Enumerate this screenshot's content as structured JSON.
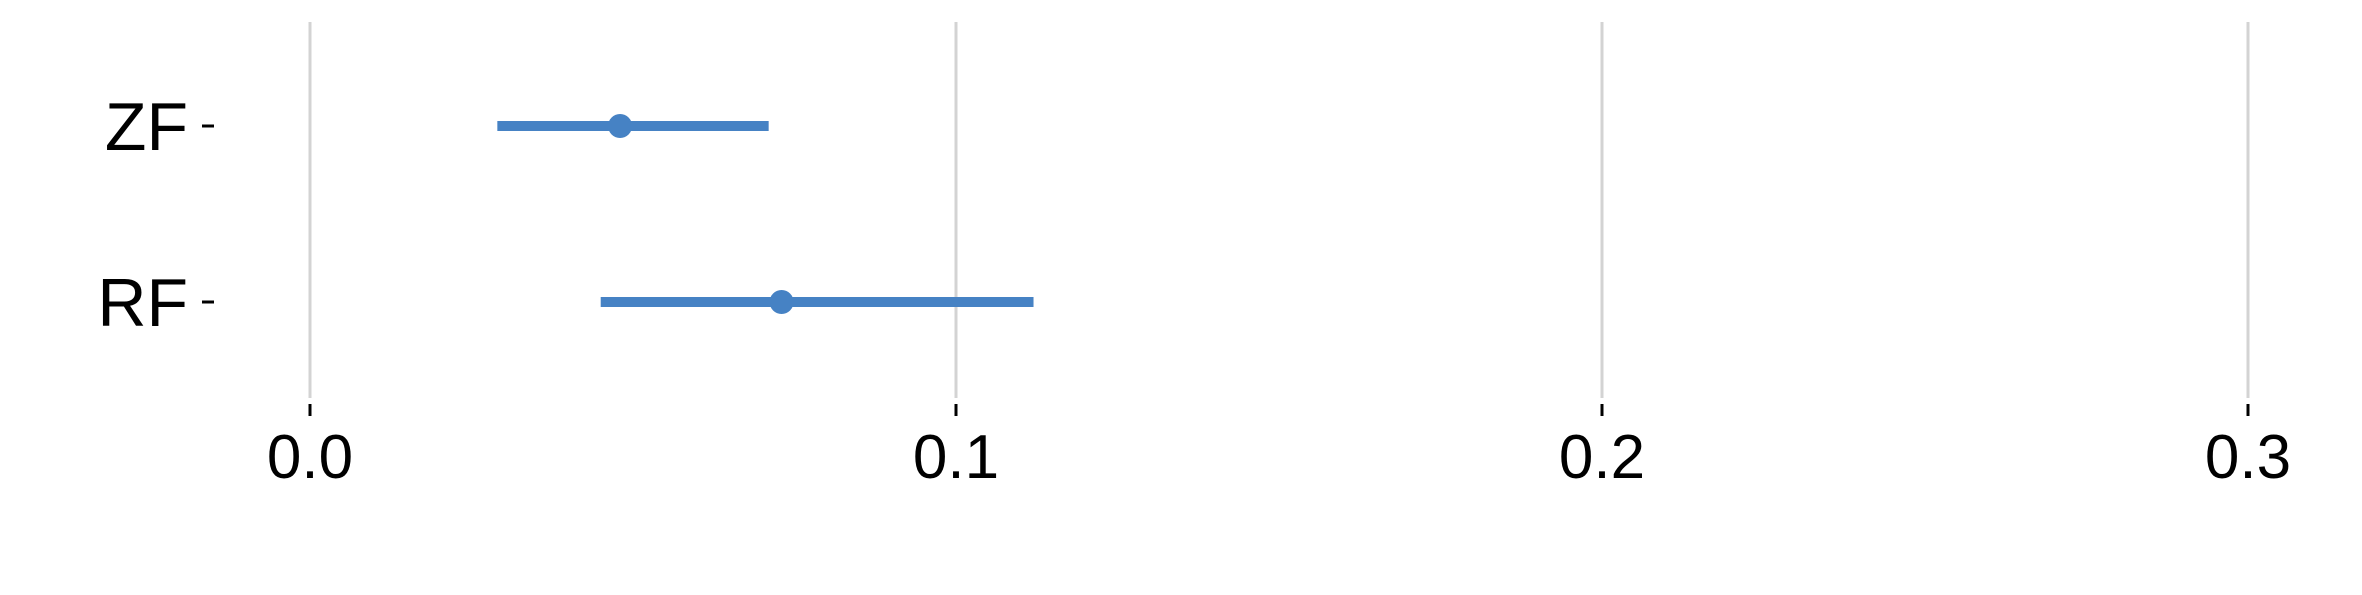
{
  "chart_data": {
    "type": "errorbar",
    "orientation": "horizontal",
    "categories": [
      "ZF",
      "RF"
    ],
    "series": [
      {
        "points": [
          {
            "category": "ZF",
            "value": 0.048,
            "low": 0.029,
            "high": 0.071
          },
          {
            "category": "RF",
            "value": 0.073,
            "low": 0.045,
            "high": 0.112
          }
        ]
      }
    ],
    "title": "",
    "xlabel": "",
    "ylabel": "",
    "xlim": [
      -0.02,
      0.31
    ],
    "xticks": [
      0.0,
      0.1,
      0.2,
      0.3
    ],
    "xtick_labels": [
      "0.0",
      "0.1",
      "0.2",
      "0.3"
    ],
    "grid": "vertical major gridlines",
    "legend": "none",
    "colors": {
      "series": "#4682c4",
      "grid": "#d3d3d3",
      "text": "#000000"
    }
  }
}
